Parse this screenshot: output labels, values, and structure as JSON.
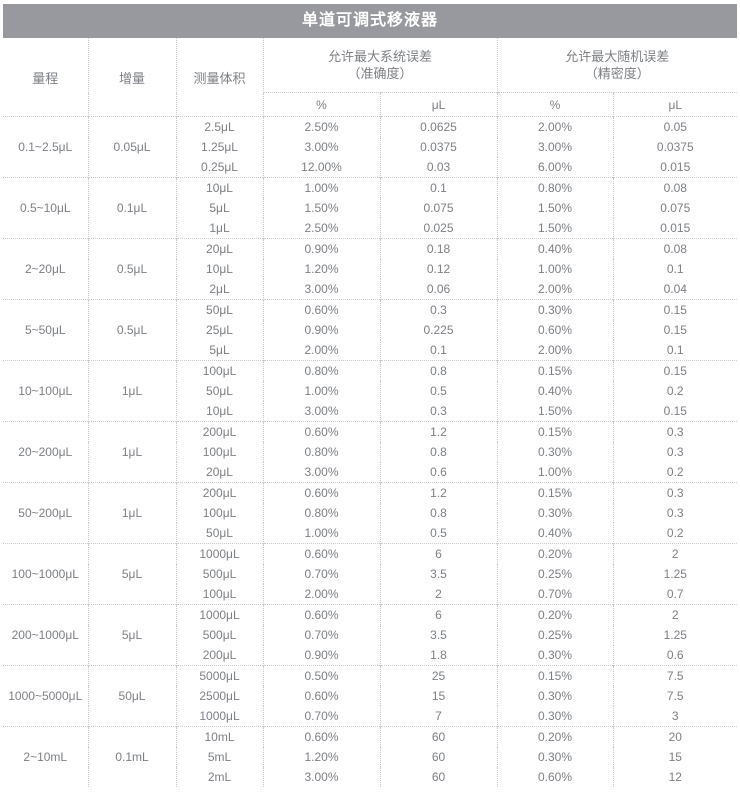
{
  "title": "单道可调式移液器",
  "table": {
    "headers": {
      "range": "量程",
      "increment": "增量",
      "test_volume": "测量体积",
      "systematic_line1": "允许最大系统误差",
      "systematic_line2": "（准确度）",
      "random_line1": "允许最大随机误差",
      "random_line2": "（精密度）",
      "percent": "%",
      "microliter": "μL"
    },
    "groups": [
      {
        "range": "0.1~2.5μL",
        "increment": "0.05μL",
        "rows": [
          {
            "volume": "2.5μL",
            "sys_pct": "2.50%",
            "sys_ul": "0.0625",
            "rand_pct": "2.00%",
            "rand_ul": "0.05"
          },
          {
            "volume": "1.25μL",
            "sys_pct": "3.00%",
            "sys_ul": "0.0375",
            "rand_pct": "3.00%",
            "rand_ul": "0.0375"
          },
          {
            "volume": "0.25μL",
            "sys_pct": "12.00%",
            "sys_ul": "0.03",
            "rand_pct": "6.00%",
            "rand_ul": "0.015"
          }
        ]
      },
      {
        "range": "0.5~10μL",
        "increment": "0.1μL",
        "rows": [
          {
            "volume": "10μL",
            "sys_pct": "1.00%",
            "sys_ul": "0.1",
            "rand_pct": "0.80%",
            "rand_ul": "0.08"
          },
          {
            "volume": "5μL",
            "sys_pct": "1.50%",
            "sys_ul": "0.075",
            "rand_pct": "1.50%",
            "rand_ul": "0.075"
          },
          {
            "volume": "1μL",
            "sys_pct": "2.50%",
            "sys_ul": "0.025",
            "rand_pct": "1.50%",
            "rand_ul": "0.015"
          }
        ]
      },
      {
        "range": "2~20μL",
        "increment": "0.5μL",
        "rows": [
          {
            "volume": "20μL",
            "sys_pct": "0.90%",
            "sys_ul": "0.18",
            "rand_pct": "0.40%",
            "rand_ul": "0.08"
          },
          {
            "volume": "10μL",
            "sys_pct": "1.20%",
            "sys_ul": "0.12",
            "rand_pct": "1.00%",
            "rand_ul": "0.1"
          },
          {
            "volume": "2μL",
            "sys_pct": "3.00%",
            "sys_ul": "0.06",
            "rand_pct": "2.00%",
            "rand_ul": "0.04"
          }
        ]
      },
      {
        "range": "5~50μL",
        "increment": "0.5μL",
        "rows": [
          {
            "volume": "50μL",
            "sys_pct": "0.60%",
            "sys_ul": "0.3",
            "rand_pct": "0.30%",
            "rand_ul": "0.15"
          },
          {
            "volume": "25μL",
            "sys_pct": "0.90%",
            "sys_ul": "0.225",
            "rand_pct": "0.60%",
            "rand_ul": "0.15"
          },
          {
            "volume": "5μL",
            "sys_pct": "2.00%",
            "sys_ul": "0.1",
            "rand_pct": "2.00%",
            "rand_ul": "0.1"
          }
        ]
      },
      {
        "range": "10~100μL",
        "increment": "1μL",
        "rows": [
          {
            "volume": "100μL",
            "sys_pct": "0.80%",
            "sys_ul": "0.8",
            "rand_pct": "0.15%",
            "rand_ul": "0.15"
          },
          {
            "volume": "50μL",
            "sys_pct": "1.00%",
            "sys_ul": "0.5",
            "rand_pct": "0.40%",
            "rand_ul": "0.2"
          },
          {
            "volume": "10μL",
            "sys_pct": "3.00%",
            "sys_ul": "0.3",
            "rand_pct": "1.50%",
            "rand_ul": "0.15"
          }
        ]
      },
      {
        "range": "20~200μL",
        "increment": "1μL",
        "rows": [
          {
            "volume": "200μL",
            "sys_pct": "0.60%",
            "sys_ul": "1.2",
            "rand_pct": "0.15%",
            "rand_ul": "0.3"
          },
          {
            "volume": "100μL",
            "sys_pct": "0.80%",
            "sys_ul": "0.8",
            "rand_pct": "0.30%",
            "rand_ul": "0.3"
          },
          {
            "volume": "20μL",
            "sys_pct": "3.00%",
            "sys_ul": "0.6",
            "rand_pct": "1.00%",
            "rand_ul": "0.2"
          }
        ]
      },
      {
        "range": "50~200μL",
        "increment": "1μL",
        "rows": [
          {
            "volume": "200μL",
            "sys_pct": "0.60%",
            "sys_ul": "1.2",
            "rand_pct": "0.15%",
            "rand_ul": "0.3"
          },
          {
            "volume": "100μL",
            "sys_pct": "0.80%",
            "sys_ul": "0.8",
            "rand_pct": "0.30%",
            "rand_ul": "0.3"
          },
          {
            "volume": "50μL",
            "sys_pct": "1.00%",
            "sys_ul": "0.5",
            "rand_pct": "0.40%",
            "rand_ul": "0.2"
          }
        ]
      },
      {
        "range": "100~1000μL",
        "increment": "5μL",
        "rows": [
          {
            "volume": "1000μL",
            "sys_pct": "0.60%",
            "sys_ul": "6",
            "rand_pct": "0.20%",
            "rand_ul": "2"
          },
          {
            "volume": "500μL",
            "sys_pct": "0.70%",
            "sys_ul": "3.5",
            "rand_pct": "0.25%",
            "rand_ul": "1.25"
          },
          {
            "volume": "100μL",
            "sys_pct": "2.00%",
            "sys_ul": "2",
            "rand_pct": "0.70%",
            "rand_ul": "0.7"
          }
        ]
      },
      {
        "range": "200~1000μL",
        "increment": "5μL",
        "rows": [
          {
            "volume": "1000μL",
            "sys_pct": "0.60%",
            "sys_ul": "6",
            "rand_pct": "0.20%",
            "rand_ul": "2"
          },
          {
            "volume": "500μL",
            "sys_pct": "0.70%",
            "sys_ul": "3.5",
            "rand_pct": "0.25%",
            "rand_ul": "1.25"
          },
          {
            "volume": "200μL",
            "sys_pct": "0.90%",
            "sys_ul": "1.8",
            "rand_pct": "0.30%",
            "rand_ul": "0.6"
          }
        ]
      },
      {
        "range": "1000~5000μL",
        "increment": "50μL",
        "rows": [
          {
            "volume": "5000μL",
            "sys_pct": "0.50%",
            "sys_ul": "25",
            "rand_pct": "0.15%",
            "rand_ul": "7.5"
          },
          {
            "volume": "2500μL",
            "sys_pct": "0.60%",
            "sys_ul": "15",
            "rand_pct": "0.30%",
            "rand_ul": "7.5"
          },
          {
            "volume": "1000μL",
            "sys_pct": "0.70%",
            "sys_ul": "7",
            "rand_pct": "0.30%",
            "rand_ul": "3"
          }
        ]
      },
      {
        "range": "2~10mL",
        "increment": "0.1mL",
        "rows": [
          {
            "volume": "10mL",
            "sys_pct": "0.60%",
            "sys_ul": "60",
            "rand_pct": "0.20%",
            "rand_ul": "20"
          },
          {
            "volume": "5mL",
            "sys_pct": "1.20%",
            "sys_ul": "60",
            "rand_pct": "0.30%",
            "rand_ul": "15"
          },
          {
            "volume": "2mL",
            "sys_pct": "3.00%",
            "sys_ul": "60",
            "rand_pct": "0.60%",
            "rand_ul": "12"
          }
        ]
      }
    ]
  },
  "colors": {
    "title_bar_bg": "#97999e",
    "title_text": "#ffffff",
    "body_text": "#7d8085",
    "border": "#c8cacd"
  }
}
